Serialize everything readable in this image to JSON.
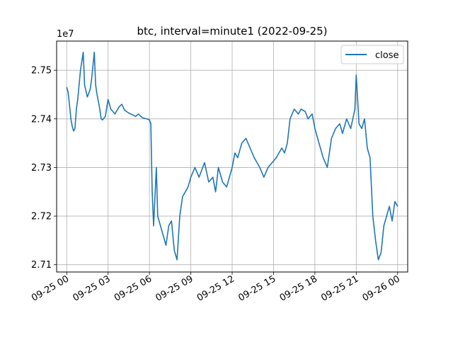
{
  "chart_data": {
    "type": "line",
    "title": "btc, interval=minute1 (2022-09-25)",
    "xlabel": "",
    "ylabel": "",
    "offset_label": "1e7",
    "grid": true,
    "legend_position": "top-right",
    "x_tick_labels": [
      "09-25 00",
      "09-25 03",
      "09-25 06",
      "09-25 09",
      "09-25 12",
      "09-25 15",
      "09-25 18",
      "09-25 21",
      "09-26 00"
    ],
    "y_tick_labels": [
      "2.71",
      "2.72",
      "2.73",
      "2.74",
      "2.75"
    ],
    "y_ticks": [
      27100000,
      27200000,
      27300000,
      27400000,
      27500000
    ],
    "xlim_hours": [
      -0.73,
      24.73
    ],
    "ylim": [
      27085000,
      27560000
    ],
    "series": [
      {
        "name": "close",
        "color": "#1f77b4",
        "x_hours": [
          0.0,
          0.1,
          0.2,
          0.3,
          0.4,
          0.5,
          0.6,
          0.7,
          0.8,
          1.0,
          1.2,
          1.3,
          1.5,
          1.7,
          1.8,
          2.0,
          2.1,
          2.2,
          2.4,
          2.5,
          2.6,
          2.8,
          3.0,
          3.1,
          3.2,
          3.5,
          3.8,
          4.0,
          4.2,
          4.5,
          4.8,
          5.0,
          5.2,
          5.5,
          5.8,
          6.0,
          6.1,
          6.2,
          6.3,
          6.5,
          6.6,
          6.8,
          7.0,
          7.2,
          7.4,
          7.6,
          7.8,
          8.0,
          8.2,
          8.4,
          8.6,
          8.8,
          9.0,
          9.3,
          9.6,
          10.0,
          10.3,
          10.6,
          10.8,
          11.0,
          11.3,
          11.6,
          12.0,
          12.2,
          12.4,
          12.7,
          13.0,
          13.3,
          13.6,
          14.0,
          14.3,
          14.6,
          14.9,
          15.2,
          15.4,
          15.6,
          15.8,
          16.0,
          16.2,
          16.5,
          16.8,
          17.0,
          17.3,
          17.5,
          17.8,
          18.0,
          18.3,
          18.6,
          18.9,
          19.2,
          19.5,
          19.8,
          20.0,
          20.3,
          20.6,
          20.9,
          21.0,
          21.2,
          21.4,
          21.6,
          21.8,
          22.0,
          22.2,
          22.4,
          22.6,
          22.8,
          23.0,
          23.2,
          23.4,
          23.6,
          23.8,
          24.0
        ],
        "values": [
          27465000,
          27455000,
          27430000,
          27400000,
          27385000,
          27375000,
          27380000,
          27420000,
          27440000,
          27500000,
          27537000,
          27470000,
          27445000,
          27460000,
          27480000,
          27537000,
          27470000,
          27450000,
          27420000,
          27400000,
          27398000,
          27405000,
          27440000,
          27430000,
          27420000,
          27410000,
          27425000,
          27430000,
          27418000,
          27412000,
          27408000,
          27405000,
          27410000,
          27402000,
          27400000,
          27398000,
          27390000,
          27250000,
          27180000,
          27300000,
          27200000,
          27180000,
          27160000,
          27140000,
          27180000,
          27190000,
          27130000,
          27110000,
          27200000,
          27240000,
          27250000,
          27260000,
          27280000,
          27300000,
          27280000,
          27310000,
          27270000,
          27280000,
          27250000,
          27300000,
          27270000,
          27260000,
          27300000,
          27330000,
          27320000,
          27350000,
          27360000,
          27340000,
          27320000,
          27300000,
          27280000,
          27300000,
          27310000,
          27320000,
          27330000,
          27340000,
          27330000,
          27350000,
          27400000,
          27420000,
          27410000,
          27420000,
          27415000,
          27400000,
          27410000,
          27380000,
          27350000,
          27320000,
          27300000,
          27360000,
          27380000,
          27390000,
          27370000,
          27400000,
          27380000,
          27420000,
          27490000,
          27390000,
          27380000,
          27400000,
          27340000,
          27320000,
          27200000,
          27150000,
          27110000,
          27125000,
          27180000,
          27200000,
          27220000,
          27190000,
          27230000,
          27220000
        ]
      }
    ]
  }
}
